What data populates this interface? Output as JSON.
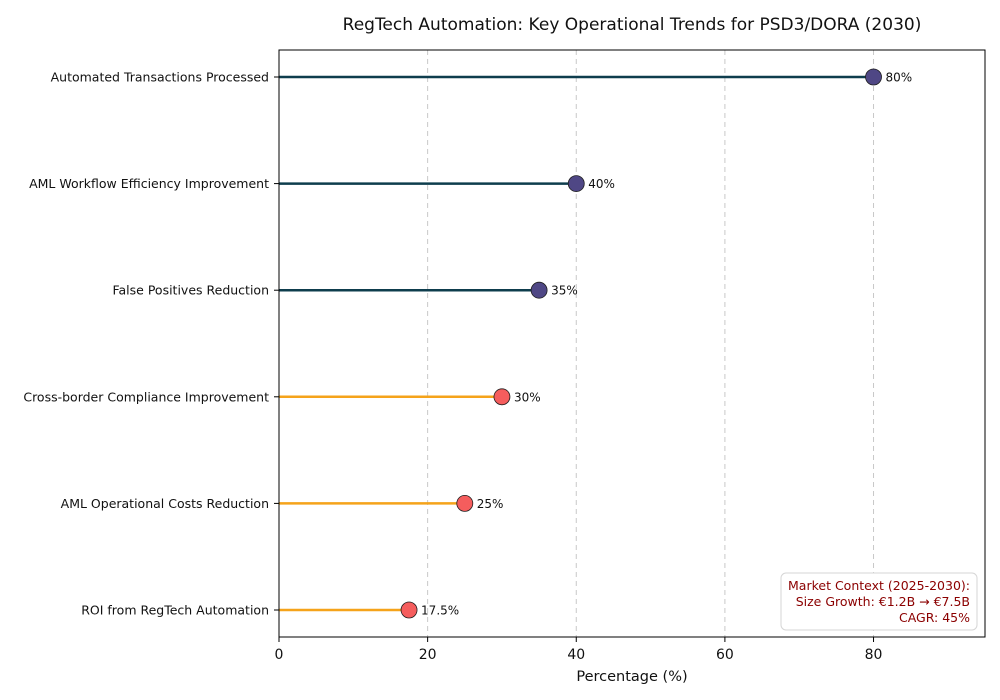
{
  "chart_data": {
    "type": "lollipop",
    "orientation": "horizontal",
    "title": "RegTech Automation: Key Operational Trends for PSD3/DORA (2030)",
    "xlabel": "Percentage (%)",
    "ylabel": "",
    "xlim": [
      0,
      95
    ],
    "xticks": [
      0,
      20,
      40,
      60,
      80
    ],
    "grid": "x-dashed",
    "categories": [
      "Automated Transactions Processed",
      "AML Workflow Efficiency Improvement",
      "False Positives Reduction",
      "Cross-border Compliance Improvement",
      "AML Operational Costs Reduction",
      "ROI from RegTech Automation"
    ],
    "values": [
      80,
      40,
      35,
      30,
      25,
      17.5
    ],
    "value_labels": [
      "80%",
      "40%",
      "35%",
      "30%",
      "25%",
      "17.5%"
    ],
    "groups": [
      "high",
      "high",
      "high",
      "low",
      "low",
      "low"
    ],
    "colors": {
      "high_stem": "#0e3d4d",
      "high_marker": "#4f4785",
      "low_stem": "#f5a31a",
      "low_marker": "#f55d5d",
      "annotation_text": "#8b0000"
    },
    "annotation": {
      "lines": [
        "Market Context (2025-2030):",
        "Size Growth: €1.2B → €7.5B",
        "CAGR: 45%"
      ],
      "placement": "bottom-right"
    }
  }
}
